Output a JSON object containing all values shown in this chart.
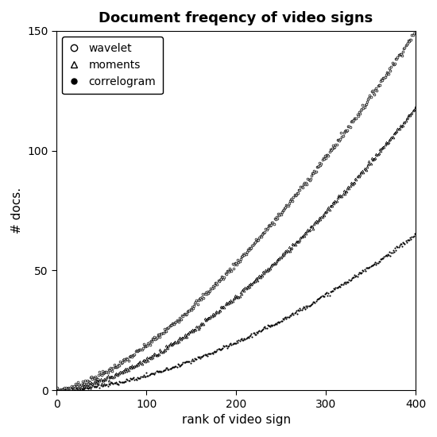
{
  "title": "Document freqency of video signs",
  "xlabel": "rank of video sign",
  "ylabel": "# docs.",
  "xlim": [
    0,
    400
  ],
  "ylim": [
    0,
    150
  ],
  "xticks": [
    0,
    100,
    200,
    300,
    400
  ],
  "yticks": [
    0,
    50,
    100,
    150
  ],
  "n_points": 400,
  "wavelet_max": 150,
  "moments_max": 118,
  "correlogram_max": 65,
  "legend_labels": [
    "wavelet",
    "moments",
    "correlogram"
  ],
  "background_color": "#ffffff",
  "figsize": [
    5.5,
    5.5
  ],
  "dpi": 100
}
